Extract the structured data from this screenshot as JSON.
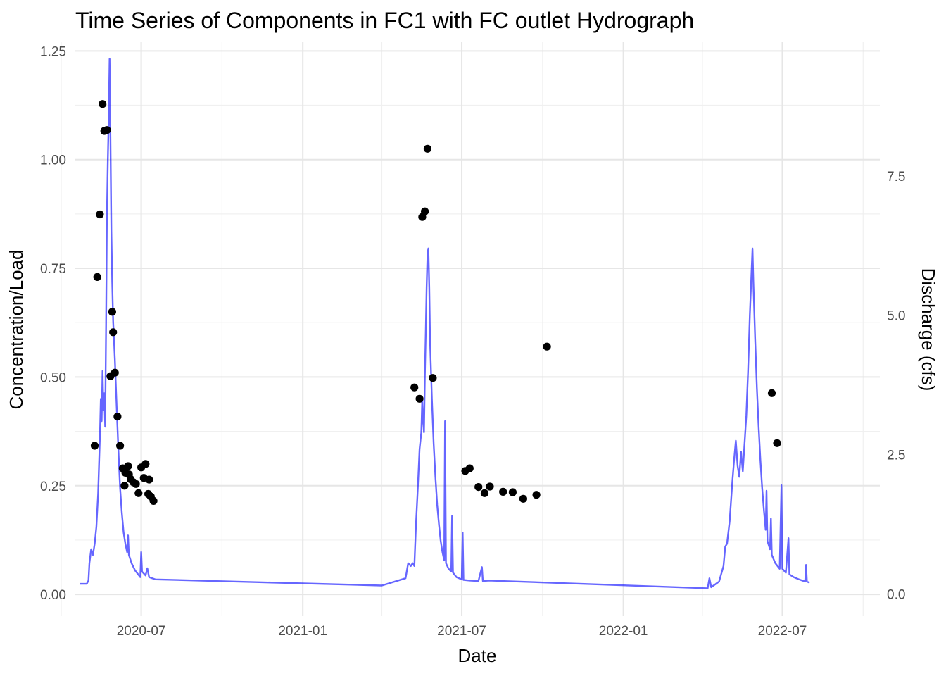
{
  "chart_data": {
    "type": "scatter+line",
    "title": "Time Series of Components in FC1 with FC outlet Hydrograph",
    "xlabel": "Date",
    "ylabel": "Concentration/Load",
    "y2label": "Discharge (cfs)",
    "xlim": [
      "2020-04-17",
      "2022-10-20"
    ],
    "ylim": [
      -0.05,
      1.27
    ],
    "y2lim": [
      -0.4,
      9.9
    ],
    "x_ticks": [
      "2020-07",
      "2021-01",
      "2021-07",
      "2022-01",
      "2022-07"
    ],
    "x_tick_dates": [
      "2020-07-01",
      "2021-01-01",
      "2021-07-01",
      "2022-01-01",
      "2022-07-01"
    ],
    "x_minor_dates": [
      "2020-04-01",
      "2020-10-01",
      "2021-04-01",
      "2021-10-01",
      "2022-04-01",
      "2022-10-01"
    ],
    "y_ticks": [
      "0.00",
      "0.25",
      "0.50",
      "0.75",
      "1.00",
      "1.25"
    ],
    "y_tick_values": [
      0,
      0.25,
      0.5,
      0.75,
      1.0,
      1.25
    ],
    "y2_ticks": [
      "0.0",
      "2.5",
      "5.0",
      "7.5"
    ],
    "y2_tick_values": [
      0,
      2.5,
      5.0,
      7.5
    ],
    "grid": true,
    "colors": {
      "points": "#000000",
      "hydrograph": "#0000ff"
    },
    "series": [
      {
        "kind": "scatter",
        "axis": "left",
        "points": [
          [
            "2020-05-09",
            0.342
          ],
          [
            "2020-05-12",
            0.73
          ],
          [
            "2020-05-15",
            0.874
          ],
          [
            "2020-05-18",
            1.128
          ],
          [
            "2020-05-20",
            1.066
          ],
          [
            "2020-05-23",
            1.068
          ],
          [
            "2020-05-27",
            0.502
          ],
          [
            "2020-05-29",
            0.65
          ],
          [
            "2020-05-30",
            0.603
          ],
          [
            "2020-06-01",
            0.51
          ],
          [
            "2020-06-04",
            0.409
          ],
          [
            "2020-06-07",
            0.342
          ],
          [
            "2020-06-10",
            0.29
          ],
          [
            "2020-06-12",
            0.25
          ],
          [
            "2020-06-13",
            0.28
          ],
          [
            "2020-06-16",
            0.295
          ],
          [
            "2020-06-17",
            0.276
          ],
          [
            "2020-06-19",
            0.265
          ],
          [
            "2020-06-22",
            0.258
          ],
          [
            "2020-06-25",
            0.254
          ],
          [
            "2020-06-28",
            0.233
          ],
          [
            "2020-07-01",
            0.292
          ],
          [
            "2020-07-04",
            0.268
          ],
          [
            "2020-07-06",
            0.3
          ],
          [
            "2020-07-09",
            0.231
          ],
          [
            "2020-07-10",
            0.264
          ],
          [
            "2020-07-12",
            0.225
          ],
          [
            "2020-07-15",
            0.215
          ],
          [
            "2021-05-08",
            0.476
          ],
          [
            "2021-05-14",
            0.45
          ],
          [
            "2021-05-17",
            0.868
          ],
          [
            "2021-05-20",
            0.881
          ],
          [
            "2021-05-23",
            1.025
          ],
          [
            "2021-05-29",
            0.498
          ],
          [
            "2021-07-05",
            0.284
          ],
          [
            "2021-07-10",
            0.29
          ],
          [
            "2021-07-20",
            0.247
          ],
          [
            "2021-07-27",
            0.233
          ],
          [
            "2021-08-02",
            0.248
          ],
          [
            "2021-08-17",
            0.236
          ],
          [
            "2021-08-28",
            0.235
          ],
          [
            "2021-09-09",
            0.22
          ],
          [
            "2021-09-24",
            0.229
          ],
          [
            "2021-10-06",
            0.57
          ],
          [
            "2022-06-19",
            0.463
          ],
          [
            "2022-06-25",
            0.348
          ]
        ]
      },
      {
        "kind": "line",
        "axis": "right",
        "points": [
          [
            "2020-04-22",
            0.18
          ],
          [
            "2020-04-30",
            0.18
          ],
          [
            "2020-05-02",
            0.24
          ],
          [
            "2020-05-03",
            0.55
          ],
          [
            "2020-05-05",
            0.8
          ],
          [
            "2020-05-07",
            0.7
          ],
          [
            "2020-05-09",
            0.9
          ],
          [
            "2020-05-11",
            1.2
          ],
          [
            "2020-05-13",
            1.8
          ],
          [
            "2020-05-15",
            2.8
          ],
          [
            "2020-05-16",
            3.5
          ],
          [
            "2020-05-17",
            3.1
          ],
          [
            "2020-05-18",
            4.0
          ],
          [
            "2020-05-19",
            3.3
          ],
          [
            "2020-05-20",
            3.6
          ],
          [
            "2020-05-21",
            3.0
          ],
          [
            "2020-05-22",
            4.8
          ],
          [
            "2020-05-23",
            6.8
          ],
          [
            "2020-05-24",
            7.8
          ],
          [
            "2020-05-25",
            8.5
          ],
          [
            "2020-05-26",
            9.6
          ],
          [
            "2020-05-27",
            8.2
          ],
          [
            "2020-05-28",
            6.5
          ],
          [
            "2020-05-29",
            5.6
          ],
          [
            "2020-05-30",
            4.9
          ],
          [
            "2020-06-01",
            4.2
          ],
          [
            "2020-06-03",
            3.4
          ],
          [
            "2020-06-05",
            2.6
          ],
          [
            "2020-06-07",
            1.9
          ],
          [
            "2020-06-09",
            1.45
          ],
          [
            "2020-06-11",
            1.1
          ],
          [
            "2020-06-13",
            0.9
          ],
          [
            "2020-06-15",
            0.75
          ],
          [
            "2020-06-16",
            1.05
          ],
          [
            "2020-06-17",
            0.7
          ],
          [
            "2020-06-20",
            0.55
          ],
          [
            "2020-06-24",
            0.42
          ],
          [
            "2020-06-28",
            0.34
          ],
          [
            "2020-06-30",
            0.3
          ],
          [
            "2020-07-01",
            0.75
          ],
          [
            "2020-07-02",
            0.4
          ],
          [
            "2020-07-06",
            0.33
          ],
          [
            "2020-07-08",
            0.46
          ],
          [
            "2020-07-10",
            0.3
          ],
          [
            "2020-07-17",
            0.26
          ],
          [
            "2021-04-01",
            0.15
          ],
          [
            "2021-04-28",
            0.28
          ],
          [
            "2021-05-01",
            0.55
          ],
          [
            "2021-05-04",
            0.5
          ],
          [
            "2021-05-06",
            0.55
          ],
          [
            "2021-05-08",
            0.5
          ],
          [
            "2021-05-10",
            1.3
          ],
          [
            "2021-05-12",
            1.9
          ],
          [
            "2021-05-14",
            2.6
          ],
          [
            "2021-05-16",
            2.9
          ],
          [
            "2021-05-17",
            3.5
          ],
          [
            "2021-05-18",
            3.1
          ],
          [
            "2021-05-19",
            2.9
          ],
          [
            "2021-05-20",
            3.9
          ],
          [
            "2021-05-21",
            4.7
          ],
          [
            "2021-05-22",
            5.5
          ],
          [
            "2021-05-23",
            6.1
          ],
          [
            "2021-05-24",
            6.2
          ],
          [
            "2021-05-25",
            5.5
          ],
          [
            "2021-05-26",
            4.5
          ],
          [
            "2021-05-28",
            3.5
          ],
          [
            "2021-05-30",
            2.7
          ],
          [
            "2021-06-01",
            2.1
          ],
          [
            "2021-06-03",
            1.6
          ],
          [
            "2021-06-05",
            1.25
          ],
          [
            "2021-06-07",
            0.95
          ],
          [
            "2021-06-09",
            0.75
          ],
          [
            "2021-06-11",
            0.6
          ],
          [
            "2021-06-12",
            3.1
          ],
          [
            "2021-06-13",
            0.55
          ],
          [
            "2021-06-16",
            0.45
          ],
          [
            "2021-06-19",
            0.4
          ],
          [
            "2021-06-20",
            1.4
          ],
          [
            "2021-06-21",
            0.38
          ],
          [
            "2021-06-25",
            0.3
          ],
          [
            "2021-07-01",
            0.26
          ],
          [
            "2021-07-02",
            1.1
          ],
          [
            "2021-07-03",
            0.25
          ],
          [
            "2021-07-10",
            0.24
          ],
          [
            "2021-07-20",
            0.23
          ],
          [
            "2021-07-24",
            0.48
          ],
          [
            "2021-07-25",
            0.23
          ],
          [
            "2021-08-01",
            0.24
          ],
          [
            "2022-04-07",
            0.1
          ],
          [
            "2022-04-09",
            0.28
          ],
          [
            "2022-04-11",
            0.12
          ],
          [
            "2022-04-20",
            0.22
          ],
          [
            "2022-04-25",
            0.5
          ],
          [
            "2022-04-27",
            0.85
          ],
          [
            "2022-04-29",
            0.9
          ],
          [
            "2022-05-02",
            1.3
          ],
          [
            "2022-05-05",
            2.0
          ],
          [
            "2022-05-07",
            2.4
          ],
          [
            "2022-05-09",
            2.75
          ],
          [
            "2022-05-11",
            2.3
          ],
          [
            "2022-05-13",
            2.1
          ],
          [
            "2022-05-15",
            2.55
          ],
          [
            "2022-05-17",
            2.2
          ],
          [
            "2022-05-19",
            2.7
          ],
          [
            "2022-05-21",
            3.2
          ],
          [
            "2022-05-23",
            4.0
          ],
          [
            "2022-05-25",
            5.0
          ],
          [
            "2022-05-27",
            5.8
          ],
          [
            "2022-05-28",
            6.2
          ],
          [
            "2022-05-29",
            5.6
          ],
          [
            "2022-05-31",
            4.6
          ],
          [
            "2022-06-02",
            3.7
          ],
          [
            "2022-06-04",
            3.0
          ],
          [
            "2022-06-06",
            2.4
          ],
          [
            "2022-06-08",
            1.9
          ],
          [
            "2022-06-10",
            1.5
          ],
          [
            "2022-06-12",
            1.15
          ],
          [
            "2022-06-13",
            1.85
          ],
          [
            "2022-06-14",
            0.95
          ],
          [
            "2022-06-17",
            0.8
          ],
          [
            "2022-06-18",
            1.35
          ],
          [
            "2022-06-19",
            0.7
          ],
          [
            "2022-06-23",
            0.55
          ],
          [
            "2022-06-28",
            0.45
          ],
          [
            "2022-06-30",
            1.95
          ],
          [
            "2022-07-01",
            0.45
          ],
          [
            "2022-07-05",
            0.38
          ],
          [
            "2022-07-08",
            1.0
          ],
          [
            "2022-07-09",
            0.35
          ],
          [
            "2022-07-14",
            0.3
          ],
          [
            "2022-07-20",
            0.26
          ],
          [
            "2022-07-27",
            0.22
          ],
          [
            "2022-07-28",
            0.52
          ],
          [
            "2022-07-29",
            0.22
          ],
          [
            "2022-08-01",
            0.2
          ]
        ]
      }
    ]
  }
}
